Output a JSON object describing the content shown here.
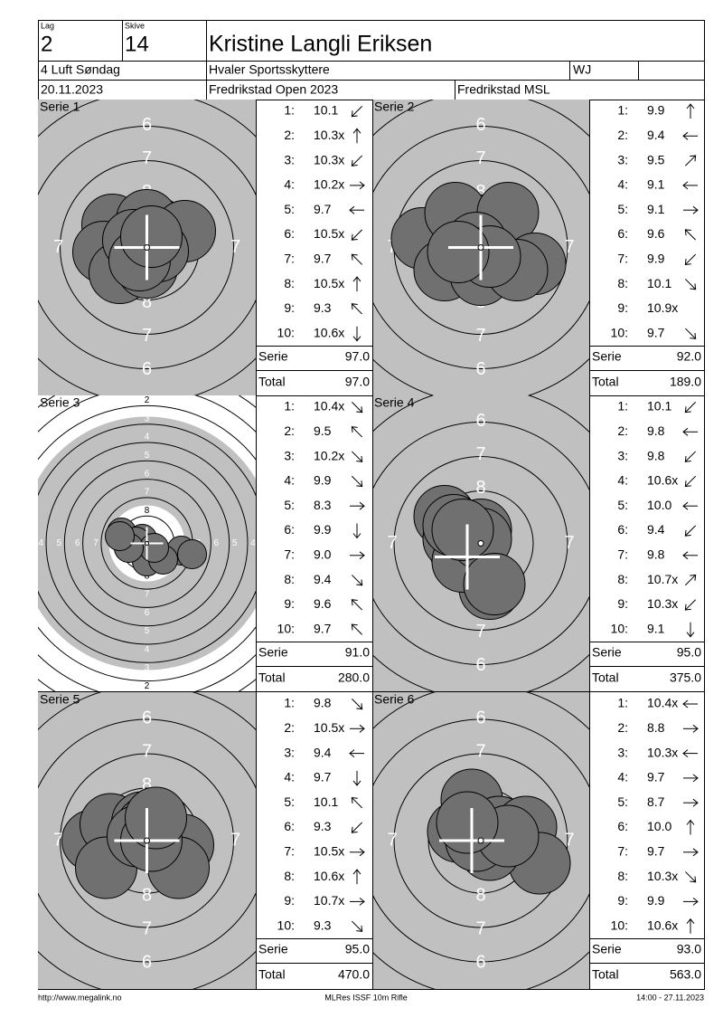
{
  "header": {
    "lag_label": "Lag",
    "lag": "2",
    "skive_label": "Skive",
    "skive": "14",
    "name": "Kristine Langli Eriksen",
    "class": "4 Luft Søndag",
    "club": "Hvaler Sportsskyttere",
    "code": "WJ",
    "date": "20.11.2023",
    "event": "Fredrikstad Open 2023",
    "venue": "Fredrikstad MSL"
  },
  "labels": {
    "serie": "Serie",
    "total": "Total"
  },
  "ring_labels": [
    "6",
    "7",
    "8"
  ],
  "series": [
    {
      "title": "Serie 1",
      "serie": "97.0",
      "total": "97.0",
      "shots": [
        {
          "no": "1:",
          "score": "10.1",
          "dir": "sw"
        },
        {
          "no": "2:",
          "score": "10.3x",
          "dir": "n"
        },
        {
          "no": "3:",
          "score": "10.3x",
          "dir": "sw"
        },
        {
          "no": "4:",
          "score": "10.2x",
          "dir": "e"
        },
        {
          "no": "5:",
          "score": "9.7",
          "dir": "w"
        },
        {
          "no": "6:",
          "score": "10.5x",
          "dir": "sw"
        },
        {
          "no": "7:",
          "score": "9.7",
          "dir": "nw"
        },
        {
          "no": "8:",
          "score": "10.5x",
          "dir": "n"
        },
        {
          "no": "9:",
          "score": "9.3",
          "dir": "nw"
        },
        {
          "no": "10:",
          "score": "10.6x",
          "dir": "s"
        }
      ]
    },
    {
      "title": "Serie 2",
      "serie": "92.0",
      "total": "189.0",
      "shots": [
        {
          "no": "1:",
          "score": "9.9",
          "dir": "n"
        },
        {
          "no": "2:",
          "score": "9.4",
          "dir": "w"
        },
        {
          "no": "3:",
          "score": "9.5",
          "dir": "ne"
        },
        {
          "no": "4:",
          "score": "9.1",
          "dir": "w"
        },
        {
          "no": "5:",
          "score": "9.1",
          "dir": "e"
        },
        {
          "no": "6:",
          "score": "9.6",
          "dir": "nw"
        },
        {
          "no": "7:",
          "score": "9.9",
          "dir": "sw"
        },
        {
          "no": "8:",
          "score": "10.1",
          "dir": "se"
        },
        {
          "no": "9:",
          "score": "10.9x",
          "dir": null
        },
        {
          "no": "10:",
          "score": "9.7",
          "dir": "se"
        }
      ]
    },
    {
      "title": "Serie 3",
      "serie": "91.0",
      "total": "280.0",
      "ring_labels": [
        "2",
        "3",
        "4",
        "5",
        "6",
        "7",
        "8"
      ],
      "shots": [
        {
          "no": "1:",
          "score": "10.4x",
          "dir": "se"
        },
        {
          "no": "2:",
          "score": "9.5",
          "dir": "nw"
        },
        {
          "no": "3:",
          "score": "10.2x",
          "dir": "se"
        },
        {
          "no": "4:",
          "score": "9.9",
          "dir": "se"
        },
        {
          "no": "5:",
          "score": "8.3",
          "dir": "e"
        },
        {
          "no": "6:",
          "score": "9.9",
          "dir": "s"
        },
        {
          "no": "7:",
          "score": "9.0",
          "dir": "e"
        },
        {
          "no": "8:",
          "score": "9.4",
          "dir": "se"
        },
        {
          "no": "9:",
          "score": "9.6",
          "dir": "nw"
        },
        {
          "no": "10:",
          "score": "9.7",
          "dir": "nw"
        }
      ]
    },
    {
      "title": "Serie 4",
      "serie": "95.0",
      "total": "375.0",
      "shots": [
        {
          "no": "1:",
          "score": "10.1",
          "dir": "sw"
        },
        {
          "no": "2:",
          "score": "9.8",
          "dir": "w"
        },
        {
          "no": "3:",
          "score": "9.8",
          "dir": "sw"
        },
        {
          "no": "4:",
          "score": "10.6x",
          "dir": "sw"
        },
        {
          "no": "5:",
          "score": "10.0",
          "dir": "w"
        },
        {
          "no": "6:",
          "score": "9.4",
          "dir": "sw"
        },
        {
          "no": "7:",
          "score": "9.8",
          "dir": "w"
        },
        {
          "no": "8:",
          "score": "10.7x",
          "dir": "ne"
        },
        {
          "no": "9:",
          "score": "10.3x",
          "dir": "sw"
        },
        {
          "no": "10:",
          "score": "9.1",
          "dir": "s"
        }
      ]
    },
    {
      "title": "Serie 5",
      "serie": "95.0",
      "total": "470.0",
      "shots": [
        {
          "no": "1:",
          "score": "9.8",
          "dir": "se"
        },
        {
          "no": "2:",
          "score": "10.5x",
          "dir": "e"
        },
        {
          "no": "3:",
          "score": "9.4",
          "dir": "w"
        },
        {
          "no": "4:",
          "score": "9.7",
          "dir": "s"
        },
        {
          "no": "5:",
          "score": "10.1",
          "dir": "nw"
        },
        {
          "no": "6:",
          "score": "9.3",
          "dir": "sw"
        },
        {
          "no": "7:",
          "score": "10.5x",
          "dir": "e"
        },
        {
          "no": "8:",
          "score": "10.6x",
          "dir": "n"
        },
        {
          "no": "9:",
          "score": "10.7x",
          "dir": "e"
        },
        {
          "no": "10:",
          "score": "9.3",
          "dir": "se"
        }
      ]
    },
    {
      "title": "Serie 6",
      "serie": "93.0",
      "total": "563.0",
      "shots": [
        {
          "no": "1:",
          "score": "10.4x",
          "dir": "w"
        },
        {
          "no": "2:",
          "score": "8.8",
          "dir": "e"
        },
        {
          "no": "3:",
          "score": "10.3x",
          "dir": "w"
        },
        {
          "no": "4:",
          "score": "9.7",
          "dir": "e"
        },
        {
          "no": "5:",
          "score": "8.7",
          "dir": "e"
        },
        {
          "no": "6:",
          "score": "10.0",
          "dir": "n"
        },
        {
          "no": "7:",
          "score": "9.7",
          "dir": "e"
        },
        {
          "no": "8:",
          "score": "10.3x",
          "dir": "se"
        },
        {
          "no": "9:",
          "score": "9.9",
          "dir": "e"
        },
        {
          "no": "10:",
          "score": "10.6x",
          "dir": "n"
        }
      ]
    }
  ],
  "footer": {
    "left": "http://www.megalink.no",
    "center": "MLRes ISSF 10m Rifle",
    "right": "14:00 - 27.11.2023"
  }
}
